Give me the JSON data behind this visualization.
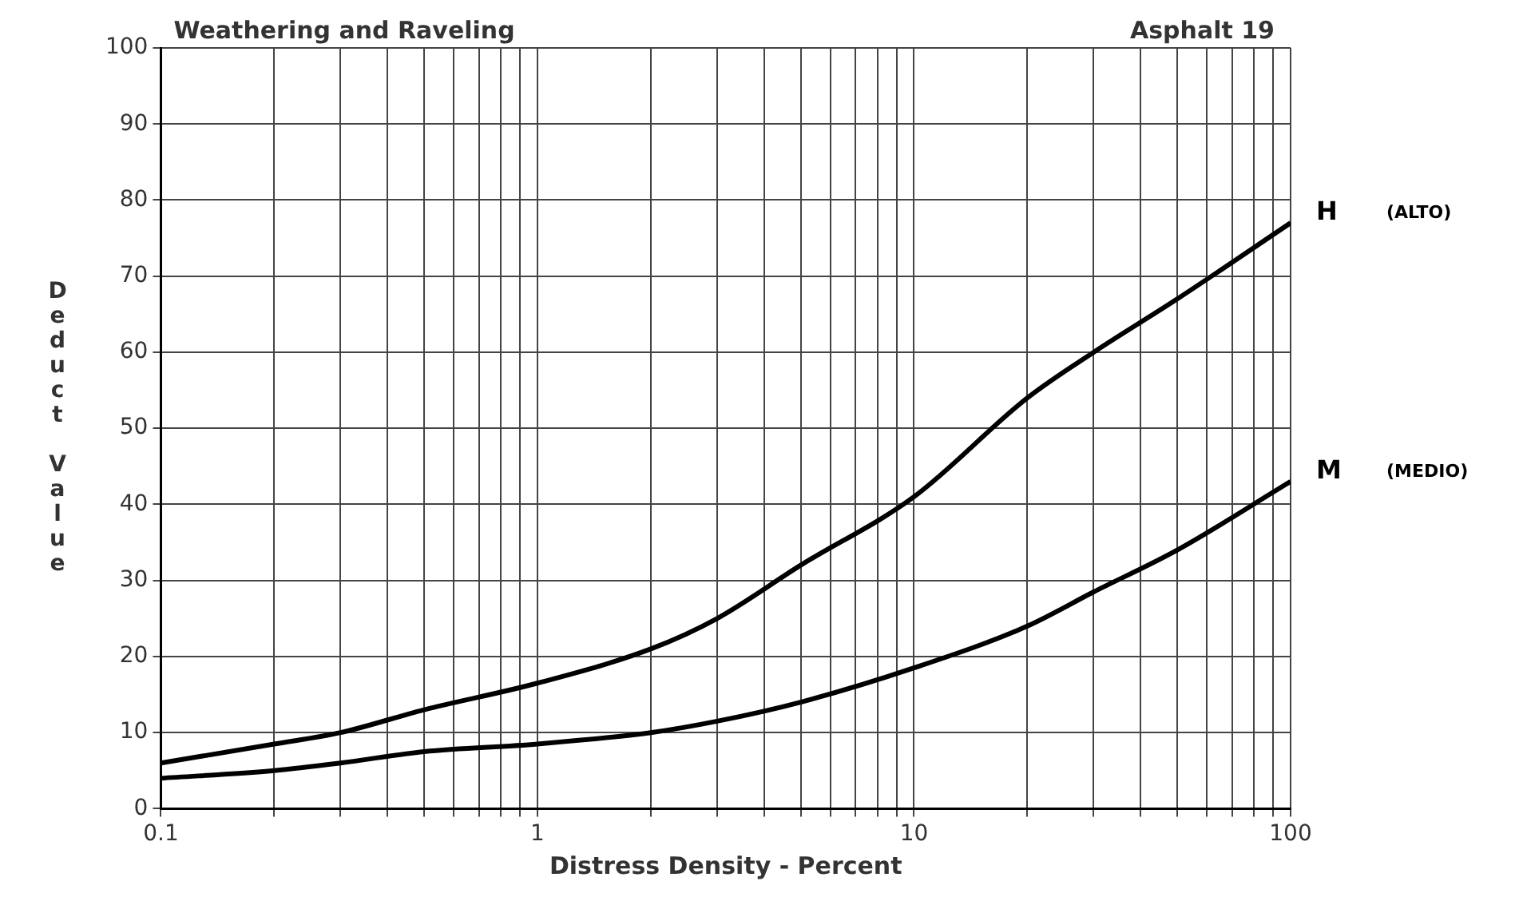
{
  "chart_data": {
    "type": "line",
    "title": "Weathering and Raveling",
    "subtitle": "Asphalt 19",
    "xlabel": "Distress Density - Percent",
    "ylabel": "Deduct Value",
    "x": [
      0.1,
      0.2,
      0.3,
      0.5,
      1,
      2,
      3,
      5,
      10,
      20,
      30,
      50,
      100
    ],
    "series": [
      {
        "name": "H",
        "color": "#000000",
        "values": [
          6,
          8.5,
          10,
          13,
          16.5,
          21,
          25,
          32,
          41,
          54,
          60,
          67,
          77
        ]
      },
      {
        "name": "M",
        "color": "#000000",
        "values": [
          4,
          5,
          6,
          7.5,
          8.5,
          10,
          11.5,
          14,
          18.5,
          24,
          28.5,
          34,
          43
        ]
      }
    ],
    "annotations": [
      "(ALTO)",
      "(MEDIO)"
    ],
    "log": "x",
    "xlim": [
      0.1,
      100
    ],
    "xticks": [
      0.1,
      {
        "value": 0.2,
        "label": null
      },
      {
        "value": 0.3,
        "label": null
      },
      {
        "value": 0.4,
        "label": null
      },
      {
        "value": 0.5,
        "label": null
      },
      {
        "value": 0.6,
        "label": null
      },
      {
        "value": 0.7,
        "label": null
      },
      {
        "value": 0.8,
        "label": null
      },
      {
        "value": 0.9,
        "label": null
      },
      1,
      {
        "value": 2,
        "label": null
      },
      {
        "value": 3,
        "label": null
      },
      {
        "value": 4,
        "label": null
      },
      {
        "value": 5,
        "label": null
      },
      {
        "value": 6,
        "label": null
      },
      {
        "value": 7,
        "label": null
      },
      {
        "value": 8,
        "label": null
      },
      {
        "value": 9,
        "label": null
      },
      10,
      {
        "value": 20,
        "label": null
      },
      {
        "value": 30,
        "label": null
      },
      {
        "value": 40,
        "label": null
      },
      {
        "value": 50,
        "label": null
      },
      {
        "value": 60,
        "label": null
      },
      {
        "value": 70,
        "label": null
      },
      {
        "value": 80,
        "label": null
      },
      {
        "value": 90,
        "label": null
      },
      100
    ],
    "ylim": [
      0,
      100
    ],
    "yticks": [
      0,
      10,
      20,
      30,
      40,
      50,
      60,
      70,
      80,
      90,
      100
    ],
    "grid": true,
    "legend": false,
    "marker": "none",
    "line_style": "solid"
  }
}
